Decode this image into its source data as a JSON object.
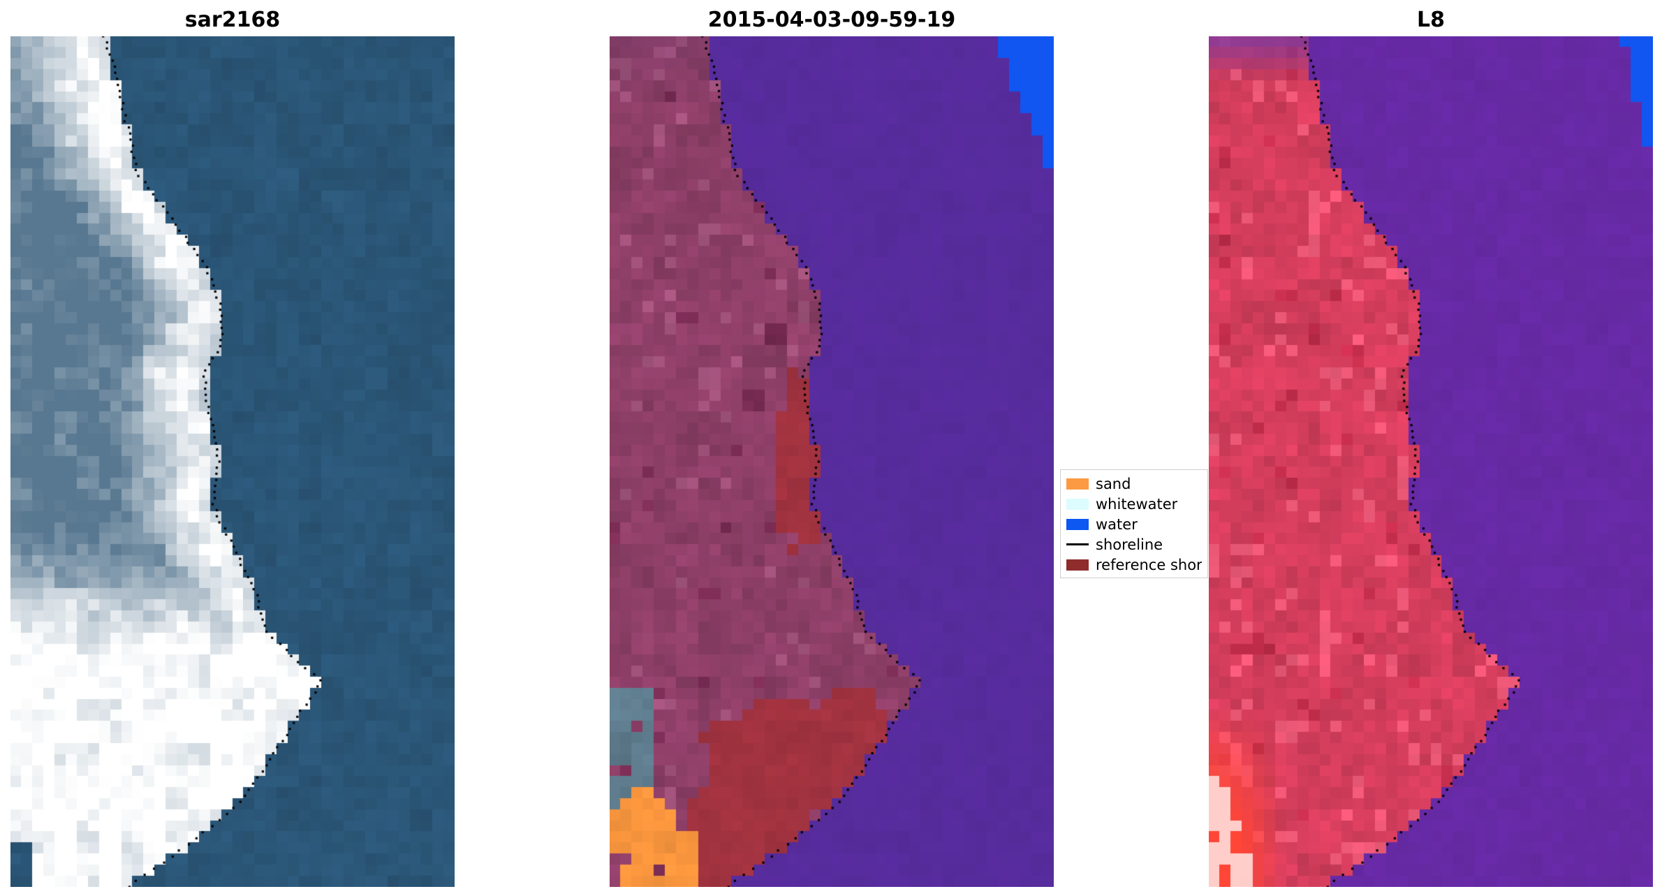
{
  "figure": {
    "background": "#ffffff"
  },
  "panels": [
    {
      "id": "sar",
      "title": "sar2168"
    },
    {
      "id": "classified",
      "title": "2015-04-03-09-59-19"
    },
    {
      "id": "l8",
      "title": "L8"
    }
  ],
  "legend": {
    "items": [
      {
        "label": "sand",
        "color": "#fb9a42",
        "type": "patch"
      },
      {
        "label": "whitewater",
        "color": "#dcfcff",
        "type": "patch"
      },
      {
        "label": "water",
        "color": "#0c58f0",
        "type": "patch"
      },
      {
        "label": "shoreline",
        "color": "#000000",
        "type": "line"
      },
      {
        "label": "reference shoreline",
        "color": "#8f2d2d",
        "type": "patch"
      }
    ]
  },
  "palette": {
    "sar_water": "#2b5677",
    "sar_land": "#587891",
    "sar_bright": "#ffffff",
    "cls_water": "#572c9d",
    "cls_land": "#8d3f67",
    "cls_blue": "#1156f0",
    "cls_ref": "#a23340",
    "cls_sand": "#f9963e",
    "cls_gray": "#5f7d8e",
    "l8_water": "#672aa5",
    "l8_land": "#d53e5d",
    "l8_blue": "#1156f0",
    "l8_hot": "#ff4637",
    "shoreline_dot": "#000000"
  },
  "shoreline_points": [
    [
      0.0,
      0.21
    ],
    [
      0.04,
      0.235
    ],
    [
      0.1,
      0.26
    ],
    [
      0.16,
      0.285
    ],
    [
      0.22,
      0.37
    ],
    [
      0.27,
      0.44
    ],
    [
      0.32,
      0.475
    ],
    [
      0.36,
      0.475
    ],
    [
      0.4,
      0.435
    ],
    [
      0.45,
      0.45
    ],
    [
      0.5,
      0.47
    ],
    [
      0.55,
      0.455
    ],
    [
      0.6,
      0.5
    ],
    [
      0.65,
      0.55
    ],
    [
      0.7,
      0.575
    ],
    [
      0.74,
      0.66
    ],
    [
      0.76,
      0.7
    ],
    [
      0.8,
      0.645
    ],
    [
      0.86,
      0.575
    ],
    [
      0.91,
      0.5
    ],
    [
      0.96,
      0.375
    ],
    [
      1.0,
      0.265
    ]
  ]
}
